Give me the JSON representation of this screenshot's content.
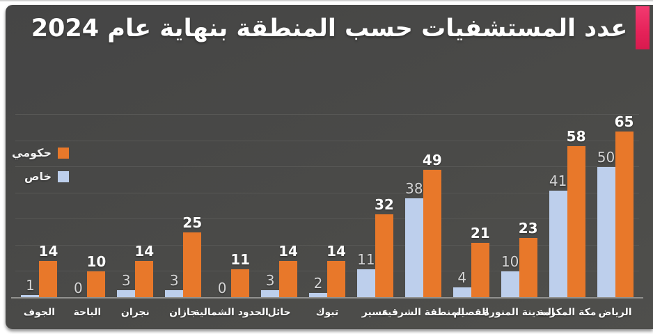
{
  "title": "عدد المستشفيات حسب المنطقة بنهاية عام 2024",
  "colors": {
    "slide_background": "#4A4A48",
    "government_bar": "#E8782A",
    "private_bar": "#BDCFEC",
    "accent_pink": "#E52259",
    "gridline": "#575755",
    "axis_line": "#91918F",
    "title_text": "#FFFFFF",
    "government_value_label": "#FFFFFF",
    "private_value_label": "#D5D5D5",
    "category_label": "#FFFFFF"
  },
  "legend": [
    {
      "id": "government",
      "label": "حكومي",
      "color": "#E8782A"
    },
    {
      "id": "private",
      "label": "خاص",
      "color": "#BDCFEC"
    }
  ],
  "chart_data": {
    "type": "bar",
    "direction": "rtl",
    "title": "عدد المستشفيات حسب المنطقة بنهاية عام 2024",
    "categories": [
      "الرياض",
      "مكة المكرمة",
      "المدينة المنورة",
      "القصيم",
      "المنطقة الشرقية",
      "عسير",
      "تبوك",
      "حائل",
      "الحدود الشمالية",
      "جازان",
      "نجران",
      "الباحة",
      "الجوف"
    ],
    "series": [
      {
        "name": "حكومي",
        "color": "#E8782A",
        "values": [
          65,
          58,
          23,
          21,
          49,
          32,
          14,
          14,
          11,
          25,
          14,
          10,
          14
        ]
      },
      {
        "name": "خاص",
        "color": "#BDCFEC",
        "values": [
          50,
          41,
          10,
          4,
          38,
          11,
          2,
          3,
          0,
          3,
          3,
          0,
          1
        ]
      }
    ],
    "ylim": [
      0,
      70
    ],
    "grid_step": 10,
    "grid": "on",
    "legend_position": "middle-left",
    "data_labels": "on"
  }
}
